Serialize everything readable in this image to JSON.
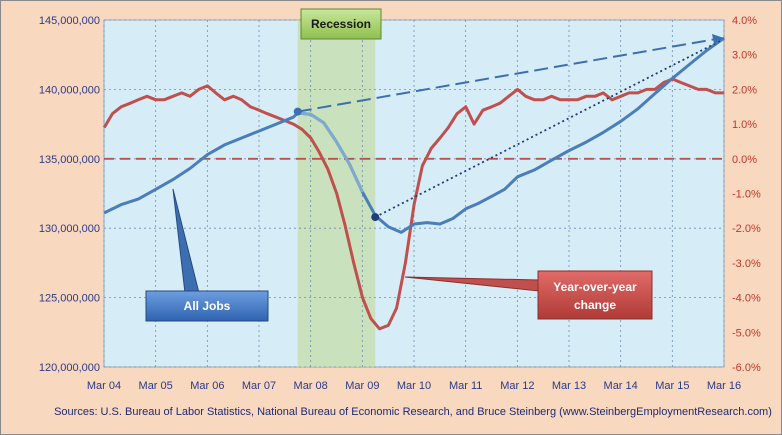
{
  "chart_data": {
    "type": "line",
    "left_axis": {
      "min": 120000000,
      "max": 145000000,
      "ticks": [
        120000000,
        125000000,
        130000000,
        135000000,
        140000000,
        145000000
      ],
      "tick_labels": [
        "120,000,000",
        "125,000,000",
        "130,000,000",
        "135,000,000",
        "140,000,000",
        "145,000,000"
      ]
    },
    "right_axis": {
      "min": -6.0,
      "max": 4.0,
      "ticks": [
        -6,
        -5,
        -4,
        -3,
        -2,
        -1,
        0,
        1,
        2,
        3,
        4
      ],
      "tick_labels": [
        "-6.0%",
        "-5.0%",
        "-4.0%",
        "-3.0%",
        "-2.0%",
        "-1.0%",
        "0.0%",
        "1.0%",
        "2.0%",
        "3.0%",
        "4.0%"
      ]
    },
    "x_axis": {
      "start": 2004.167,
      "end": 2016.167,
      "tick_values": [
        2004.167,
        2005.167,
        2006.167,
        2007.167,
        2008.167,
        2009.167,
        2010.167,
        2011.167,
        2012.167,
        2013.167,
        2014.167,
        2015.167,
        2016.167
      ],
      "tick_labels": [
        "Mar 04",
        "Mar 05",
        "Mar 06",
        "Mar 07",
        "Mar 08",
        "Mar 09",
        "Mar 10",
        "Mar 11",
        "Mar 12",
        "Mar 13",
        "Mar 14",
        "Mar 15",
        "Mar 16"
      ]
    },
    "recession": {
      "start": 2007.917,
      "end": 2009.417,
      "label": "Recession"
    },
    "series": [
      {
        "name": "All Jobs",
        "axis": "left",
        "color": "#4a7ebb",
        "points": [
          [
            2004.17,
            131100000
          ],
          [
            2004.5,
            131700000
          ],
          [
            2004.83,
            132100000
          ],
          [
            2005.17,
            132800000
          ],
          [
            2005.5,
            133500000
          ],
          [
            2005.83,
            134300000
          ],
          [
            2006.17,
            135300000
          ],
          [
            2006.5,
            136000000
          ],
          [
            2006.83,
            136500000
          ],
          [
            2007.17,
            137000000
          ],
          [
            2007.5,
            137500000
          ],
          [
            2007.83,
            138000000
          ],
          [
            2007.92,
            138300000
          ],
          [
            2008.17,
            138200000
          ],
          [
            2008.42,
            137600000
          ],
          [
            2008.67,
            136200000
          ],
          [
            2008.92,
            134600000
          ],
          [
            2009.17,
            132600000
          ],
          [
            2009.42,
            130900000
          ],
          [
            2009.67,
            130100000
          ],
          [
            2009.92,
            129700000
          ],
          [
            2010.17,
            130300000
          ],
          [
            2010.42,
            130400000
          ],
          [
            2010.67,
            130300000
          ],
          [
            2010.92,
            130700000
          ],
          [
            2011.17,
            131400000
          ],
          [
            2011.42,
            131800000
          ],
          [
            2011.67,
            132300000
          ],
          [
            2011.92,
            132800000
          ],
          [
            2012.17,
            133700000
          ],
          [
            2012.5,
            134200000
          ],
          [
            2012.83,
            134900000
          ],
          [
            2013.17,
            135600000
          ],
          [
            2013.5,
            136200000
          ],
          [
            2013.83,
            136900000
          ],
          [
            2014.17,
            137700000
          ],
          [
            2014.5,
            138600000
          ],
          [
            2014.83,
            139700000
          ],
          [
            2015.17,
            140800000
          ],
          [
            2015.5,
            141800000
          ],
          [
            2015.83,
            142800000
          ],
          [
            2016.17,
            143700000
          ]
        ]
      },
      {
        "name": "Year-over-year change",
        "axis": "right",
        "color": "#c0504d",
        "points": [
          [
            2004.17,
            0.9
          ],
          [
            2004.33,
            1.3
          ],
          [
            2004.5,
            1.5
          ],
          [
            2004.67,
            1.6
          ],
          [
            2004.83,
            1.7
          ],
          [
            2005.0,
            1.8
          ],
          [
            2005.17,
            1.7
          ],
          [
            2005.33,
            1.7
          ],
          [
            2005.5,
            1.8
          ],
          [
            2005.67,
            1.9
          ],
          [
            2005.83,
            1.8
          ],
          [
            2006.0,
            2.0
          ],
          [
            2006.17,
            2.1
          ],
          [
            2006.33,
            1.9
          ],
          [
            2006.5,
            1.7
          ],
          [
            2006.67,
            1.8
          ],
          [
            2006.83,
            1.7
          ],
          [
            2007.0,
            1.5
          ],
          [
            2007.17,
            1.4
          ],
          [
            2007.33,
            1.3
          ],
          [
            2007.5,
            1.2
          ],
          [
            2007.67,
            1.1
          ],
          [
            2007.83,
            1.0
          ],
          [
            2008.0,
            0.85
          ],
          [
            2008.17,
            0.6
          ],
          [
            2008.33,
            0.2
          ],
          [
            2008.5,
            -0.3
          ],
          [
            2008.67,
            -1.0
          ],
          [
            2008.83,
            -1.9
          ],
          [
            2009.0,
            -3.0
          ],
          [
            2009.17,
            -4.0
          ],
          [
            2009.33,
            -4.6
          ],
          [
            2009.5,
            -4.9
          ],
          [
            2009.67,
            -4.8
          ],
          [
            2009.83,
            -4.3
          ],
          [
            2010.0,
            -3.0
          ],
          [
            2010.17,
            -1.3
          ],
          [
            2010.33,
            -0.2
          ],
          [
            2010.5,
            0.3
          ],
          [
            2010.67,
            0.6
          ],
          [
            2010.83,
            0.9
          ],
          [
            2011.0,
            1.3
          ],
          [
            2011.17,
            1.5
          ],
          [
            2011.33,
            1.0
          ],
          [
            2011.5,
            1.4
          ],
          [
            2011.67,
            1.5
          ],
          [
            2011.83,
            1.6
          ],
          [
            2012.0,
            1.8
          ],
          [
            2012.17,
            2.0
          ],
          [
            2012.33,
            1.8
          ],
          [
            2012.5,
            1.7
          ],
          [
            2012.67,
            1.7
          ],
          [
            2012.83,
            1.8
          ],
          [
            2013.0,
            1.7
          ],
          [
            2013.17,
            1.7
          ],
          [
            2013.33,
            1.7
          ],
          [
            2013.5,
            1.8
          ],
          [
            2013.67,
            1.8
          ],
          [
            2013.83,
            1.9
          ],
          [
            2014.0,
            1.7
          ],
          [
            2014.17,
            1.8
          ],
          [
            2014.33,
            1.9
          ],
          [
            2014.5,
            1.9
          ],
          [
            2014.67,
            2.0
          ],
          [
            2014.83,
            2.0
          ],
          [
            2015.0,
            2.2
          ],
          [
            2015.17,
            2.3
          ],
          [
            2015.33,
            2.2
          ],
          [
            2015.5,
            2.1
          ],
          [
            2015.67,
            2.0
          ],
          [
            2015.83,
            2.0
          ],
          [
            2016.0,
            1.9
          ],
          [
            2016.17,
            1.9
          ]
        ]
      }
    ],
    "trend_lines": [
      {
        "from": [
          2007.917,
          138400000
        ],
        "to": [
          2016.167,
          143700000
        ],
        "style": "dashed"
      },
      {
        "from": [
          2009.417,
          130800000
        ],
        "to": [
          2016.167,
          143700000
        ],
        "style": "dotted"
      }
    ],
    "zero_line_pct": 0,
    "grid": true,
    "callouts": {
      "all_jobs": "All Jobs",
      "yoy_line1": "Year-over-year",
      "yoy_line2": "change"
    },
    "source": "Sources: U.S. Bureau of Labor Statistics, National Bureau of Economic Research, and Bruce Steinberg (www.SteinbergEmploymentResearch.com)"
  },
  "colors": {
    "background": "#f8d8bf",
    "plot_area": "#d6ecf6",
    "recession_band": "#c7dfb2",
    "jobs_line": "#4a7ebb",
    "yoy_line": "#c0504d",
    "trend_line": "#3d6fb0",
    "zero_line": "#c0504d"
  }
}
